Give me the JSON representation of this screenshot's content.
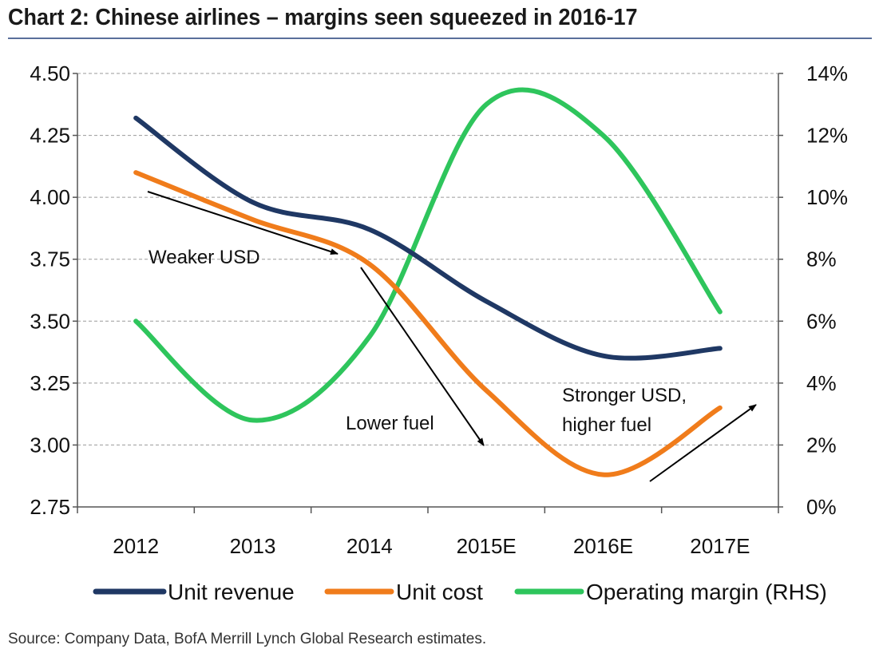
{
  "title": "Chart 2: Chinese airlines – margins seen squeezed in 2016-17",
  "source": "Source:  Company Data, BofA Merrill Lynch Global Research estimates.",
  "chart_data": {
    "type": "line",
    "categories": [
      "2012",
      "2013",
      "2014",
      "2015E",
      "2016E",
      "2017E"
    ],
    "series": [
      {
        "name": "Unit revenue",
        "axis": "left",
        "color": "#1f3864",
        "values": [
          4.32,
          3.98,
          3.87,
          3.58,
          3.36,
          3.39
        ]
      },
      {
        "name": "Unit cost",
        "axis": "left",
        "color": "#f07c1b",
        "values": [
          4.1,
          3.91,
          3.73,
          3.22,
          2.88,
          3.15
        ]
      },
      {
        "name": "Operating margin (RHS)",
        "axis": "right",
        "color": "#2ec55c",
        "values": [
          6.0,
          2.8,
          5.5,
          13.0,
          12.0,
          6.3
        ]
      }
    ],
    "y_left": {
      "min": 2.75,
      "max": 4.5,
      "ticks": [
        "2.75",
        "3.00",
        "3.25",
        "3.50",
        "3.75",
        "4.00",
        "4.25",
        "4.50"
      ]
    },
    "y_right": {
      "min": 0,
      "max": 14,
      "ticks": [
        "0%",
        "2%",
        "4%",
        "6%",
        "8%",
        "10%",
        "12%",
        "14%"
      ]
    },
    "grid": true,
    "legend_position": "bottom",
    "annotations": [
      {
        "text": "Weaker USD"
      },
      {
        "text": "Lower fuel"
      },
      {
        "text": "Stronger USD,"
      },
      {
        "text": "higher fuel"
      }
    ]
  }
}
